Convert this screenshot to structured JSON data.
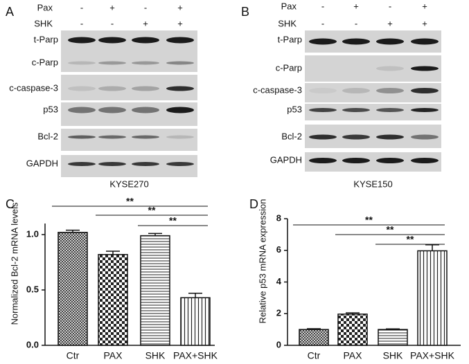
{
  "blots": [
    {
      "panel": "A",
      "cell_line": "KYSE270",
      "conditions": [
        {
          "name": "Pax",
          "signs": [
            "-",
            "+",
            "-",
            "+"
          ]
        },
        {
          "name": "SHK",
          "signs": [
            "-",
            "-",
            "+",
            "+"
          ]
        }
      ],
      "bands": [
        "t-Parp",
        "c-Parp",
        "c-caspase-3",
        "p53",
        "Bcl-2",
        "GAPDH"
      ]
    },
    {
      "panel": "B",
      "cell_line": "KYSE150",
      "conditions": [
        {
          "name": "Pax",
          "signs": [
            "-",
            "+",
            "-",
            "+"
          ]
        },
        {
          "name": "SHK",
          "signs": [
            "-",
            "-",
            "+",
            "+"
          ]
        }
      ],
      "bands": [
        "t-Parp",
        "c-Parp",
        "c-caspase-3",
        "p53",
        "Bcl-2",
        "GAPDH"
      ]
    }
  ],
  "chart_data": [
    {
      "type": "bar",
      "panel": "C",
      "y_label": "Normalized Bcl-2 mRNA levels",
      "categories": [
        "Ctr",
        "PAX",
        "SHK",
        "PAX+SHK"
      ],
      "values": [
        1.02,
        0.82,
        0.99,
        0.43
      ],
      "errors": [
        0.02,
        0.03,
        0.02,
        0.04
      ],
      "ylim": [
        0,
        1.1
      ],
      "yticks": [
        {
          "value": 0,
          "label": "0.0"
        },
        {
          "value": 0.5,
          "label": "0.5"
        },
        {
          "value": 1,
          "label": "1.0"
        }
      ],
      "significance": [
        "**",
        "**",
        "**"
      ]
    },
    {
      "type": "bar",
      "panel": "D",
      "y_label": "Relative p53 mRNA expression",
      "categories": [
        "Ctr",
        "PAX",
        "SHK",
        "PAX+SHK"
      ],
      "values": [
        1.0,
        1.97,
        1.0,
        5.97
      ],
      "errors": [
        0.05,
        0.08,
        0.04,
        0.38
      ],
      "ylim": [
        0,
        8
      ],
      "yticks": [
        0,
        2,
        4,
        6,
        8
      ],
      "significance": [
        "**",
        "**",
        "**"
      ]
    }
  ]
}
